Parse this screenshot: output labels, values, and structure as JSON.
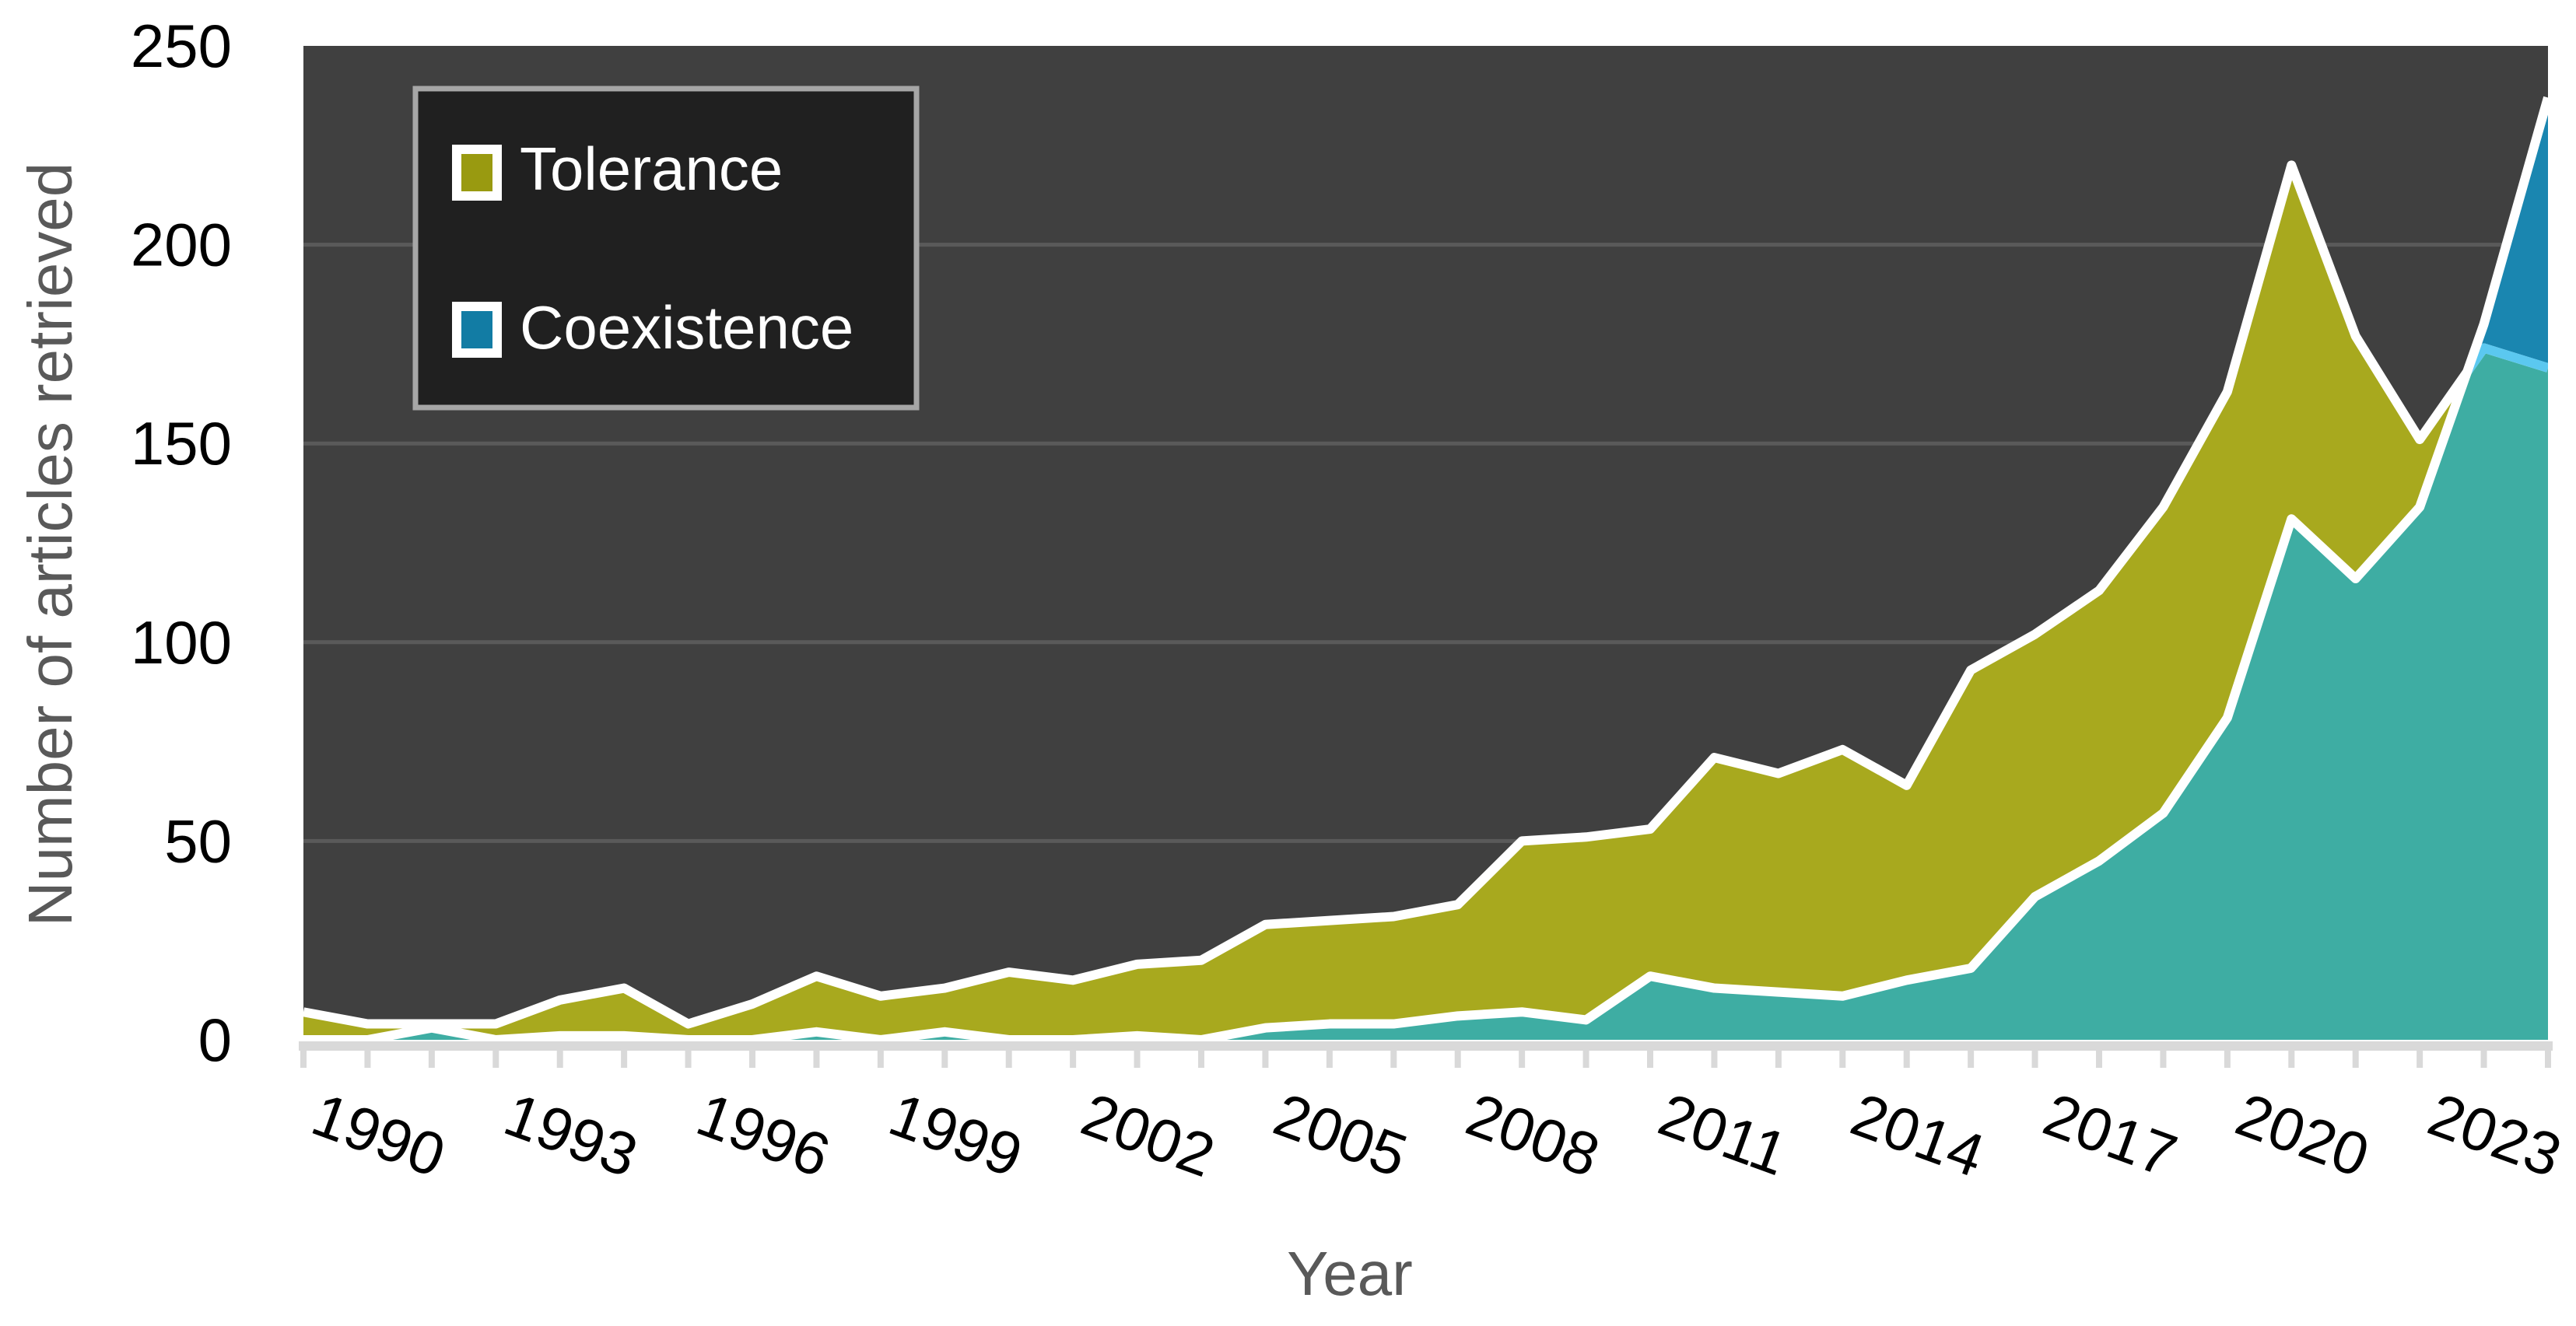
{
  "chart_data": {
    "type": "area",
    "title": "",
    "xlabel": "Year",
    "ylabel": "Number of articles retrieved",
    "ylim": [
      0,
      250
    ],
    "yticks": [
      0,
      50,
      100,
      150,
      200,
      250
    ],
    "grid": true,
    "legend_position": "top-left",
    "x": [
      1990,
      1991,
      1992,
      1993,
      1994,
      1995,
      1996,
      1997,
      1998,
      1999,
      2000,
      2001,
      2002,
      2003,
      2004,
      2005,
      2006,
      2007,
      2008,
      2009,
      2010,
      2011,
      2012,
      2013,
      2014,
      2015,
      2016,
      2017,
      2018,
      2019,
      2020,
      2021,
      2022,
      2023,
      2024,
      2025
    ],
    "xtick_labels": [
      "1990",
      "1993",
      "1996",
      "1999",
      "2002",
      "2005",
      "2008",
      "2011",
      "2014",
      "2017",
      "2020",
      "2023"
    ],
    "series": [
      {
        "name": "Tolerance",
        "color": "#999A10",
        "values": [
          7,
          4,
          4,
          4,
          10,
          13,
          4,
          9,
          16,
          11,
          13,
          17,
          15,
          19,
          20,
          29,
          30,
          31,
          34,
          50,
          51,
          53,
          71,
          67,
          73,
          64,
          93,
          102,
          113,
          134,
          163,
          220,
          177,
          151,
          174,
          169
        ]
      },
      {
        "name": "Coexistence",
        "color": "#127CA4",
        "values": [
          0,
          0,
          3,
          0,
          1,
          1,
          0,
          0,
          2,
          0,
          2,
          0,
          0,
          1,
          0,
          3,
          4,
          4,
          6,
          7,
          5,
          16,
          13,
          12,
          11,
          15,
          18,
          36,
          45,
          57,
          81,
          131,
          116,
          134,
          180,
          237
        ]
      }
    ],
    "colors": {
      "plot_background": "#404040",
      "tolerance_fill": "#A8A91E",
      "coexistence_fill": "#1A86B0",
      "overlap_fill": "#3EADA3",
      "outline": "#FFFFFF",
      "legend_background": "#202020"
    }
  }
}
